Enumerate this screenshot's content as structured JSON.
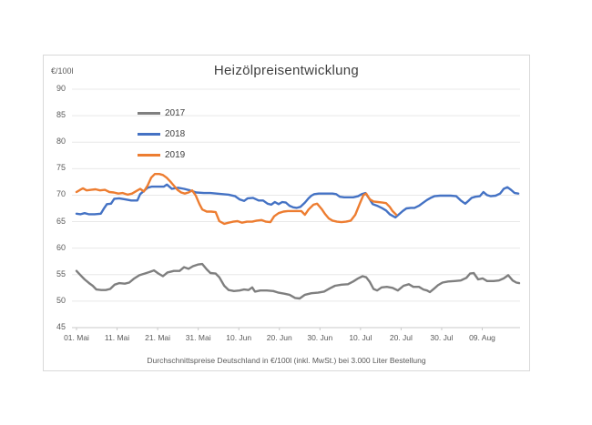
{
  "chart_data": {
    "type": "line",
    "title": "Heizölpreisentwicklung",
    "y_axis_title": "€/100l",
    "footnote": "Durchschnittspreise Deutschland in €/100l (inkl. MwSt.) bei 3.000 Liter Bestellung",
    "x_tick_labels": [
      "01. Mai",
      "11. Mai",
      "21. Mai",
      "31. Mai",
      "10. Jun",
      "20. Jun",
      "30. Jun",
      "10. Jul",
      "20. Jul",
      "30. Jul",
      "09. Aug"
    ],
    "x_tick_step_days": 10,
    "y_tick_values": [
      90,
      85,
      80,
      75,
      70,
      65,
      60,
      55,
      50,
      45
    ],
    "ylim": [
      45,
      90
    ],
    "grid": "horizontal",
    "legend_position": "inside-top-left",
    "colors": {
      "grid": "#e8e8e8",
      "axis": "#c9c9c9",
      "tick_text": "#595959",
      "title_text": "#404040"
    },
    "series": [
      {
        "name": "2017",
        "color": "#7f7f7f",
        "points": [
          [
            0,
            55.7
          ],
          [
            1.1,
            54.8
          ],
          [
            2,
            54.1
          ],
          [
            3.1,
            53.4
          ],
          [
            4,
            52.9
          ],
          [
            4.9,
            52.2
          ],
          [
            6.1,
            52.1
          ],
          [
            7.2,
            52.1
          ],
          [
            8.3,
            52.3
          ],
          [
            9.4,
            53.1
          ],
          [
            10.5,
            53.4
          ],
          [
            11.9,
            53.3
          ],
          [
            13,
            53.5
          ],
          [
            14.1,
            54.2
          ],
          [
            15.5,
            54.9
          ],
          [
            16.8,
            55.2
          ],
          [
            18,
            55.5
          ],
          [
            19.1,
            55.8
          ],
          [
            20.2,
            55.2
          ],
          [
            21.3,
            54.7
          ],
          [
            22.4,
            55.4
          ],
          [
            24,
            55.7
          ],
          [
            25.4,
            55.7
          ],
          [
            26.5,
            56.4
          ],
          [
            27.6,
            56.1
          ],
          [
            28.7,
            56.6
          ],
          [
            29.9,
            56.9
          ],
          [
            31,
            57.0
          ],
          [
            32.1,
            56.0
          ],
          [
            33,
            55.3
          ],
          [
            34.3,
            55.2
          ],
          [
            35.2,
            54.5
          ],
          [
            36.4,
            52.9
          ],
          [
            37.5,
            52.1
          ],
          [
            38.8,
            51.9
          ],
          [
            40.2,
            52.0
          ],
          [
            41.3,
            52.2
          ],
          [
            42.4,
            52.1
          ],
          [
            43.3,
            52.6
          ],
          [
            44,
            51.8
          ],
          [
            45.3,
            52.0
          ],
          [
            46.9,
            52.0
          ],
          [
            48.5,
            51.9
          ],
          [
            49.8,
            51.6
          ],
          [
            51.2,
            51.4
          ],
          [
            52.5,
            51.2
          ],
          [
            53.9,
            50.6
          ],
          [
            55,
            50.5
          ],
          [
            56.3,
            51.2
          ],
          [
            57.9,
            51.5
          ],
          [
            59.5,
            51.6
          ],
          [
            61,
            51.8
          ],
          [
            62.4,
            52.4
          ],
          [
            63.7,
            52.9
          ],
          [
            65.3,
            53.1
          ],
          [
            66.9,
            53.2
          ],
          [
            68.2,
            53.7
          ],
          [
            69.4,
            54.3
          ],
          [
            70.5,
            54.7
          ],
          [
            71.4,
            54.5
          ],
          [
            72.3,
            53.6
          ],
          [
            73.2,
            52.3
          ],
          [
            74.1,
            52.0
          ],
          [
            75.2,
            52.6
          ],
          [
            76.5,
            52.7
          ],
          [
            77.9,
            52.5
          ],
          [
            79.2,
            52.0
          ],
          [
            80.6,
            52.9
          ],
          [
            81.9,
            53.2
          ],
          [
            83,
            52.7
          ],
          [
            84.4,
            52.7
          ],
          [
            85.5,
            52.2
          ],
          [
            86.4,
            52.0
          ],
          [
            87.1,
            51.7
          ],
          [
            88.2,
            52.4
          ],
          [
            89.1,
            53.0
          ],
          [
            90.2,
            53.5
          ],
          [
            91.6,
            53.7
          ],
          [
            93.2,
            53.8
          ],
          [
            94.7,
            53.9
          ],
          [
            96.1,
            54.4
          ],
          [
            97,
            55.2
          ],
          [
            97.9,
            55.3
          ],
          [
            99,
            54.1
          ],
          [
            100.1,
            54.3
          ],
          [
            101.2,
            53.8
          ],
          [
            102.8,
            53.8
          ],
          [
            104.1,
            53.9
          ],
          [
            105.3,
            54.3
          ],
          [
            106.4,
            54.9
          ],
          [
            107.5,
            53.9
          ],
          [
            108.4,
            53.5
          ],
          [
            109.1,
            53.4
          ]
        ]
      },
      {
        "name": "2018",
        "color": "#4472c4",
        "points": [
          [
            0,
            66.5
          ],
          [
            1,
            66.4
          ],
          [
            2,
            66.6
          ],
          [
            3,
            66.4
          ],
          [
            4.5,
            66.4
          ],
          [
            6,
            66.5
          ],
          [
            6.7,
            67.4
          ],
          [
            7.5,
            68.3
          ],
          [
            8.5,
            68.4
          ],
          [
            9.3,
            69.3
          ],
          [
            10.5,
            69.4
          ],
          [
            12,
            69.2
          ],
          [
            13.5,
            69.0
          ],
          [
            15,
            69.0
          ],
          [
            15.7,
            70.2
          ],
          [
            17.5,
            71.4
          ],
          [
            18.5,
            71.6
          ],
          [
            20,
            71.6
          ],
          [
            21.5,
            71.6
          ],
          [
            22.3,
            72.0
          ],
          [
            23.5,
            71.2
          ],
          [
            25,
            71.4
          ],
          [
            26.5,
            71.2
          ],
          [
            28,
            70.9
          ],
          [
            29.5,
            70.5
          ],
          [
            31.4,
            70.4
          ],
          [
            33,
            70.4
          ],
          [
            34.5,
            70.3
          ],
          [
            36,
            70.2
          ],
          [
            37.5,
            70.1
          ],
          [
            39.1,
            69.8
          ],
          [
            40.2,
            69.2
          ],
          [
            41.3,
            68.9
          ],
          [
            42.2,
            69.4
          ],
          [
            43.5,
            69.5
          ],
          [
            44.9,
            69.0
          ],
          [
            46,
            69.0
          ],
          [
            47.1,
            68.4
          ],
          [
            48,
            68.2
          ],
          [
            48.9,
            68.7
          ],
          [
            49.8,
            68.3
          ],
          [
            50.7,
            68.7
          ],
          [
            51.6,
            68.6
          ],
          [
            52.5,
            68.0
          ],
          [
            53.4,
            67.7
          ],
          [
            54.3,
            67.6
          ],
          [
            55.2,
            67.8
          ],
          [
            56.3,
            68.6
          ],
          [
            57.2,
            69.4
          ],
          [
            57.9,
            69.9
          ],
          [
            58.6,
            70.2
          ],
          [
            59.7,
            70.3
          ],
          [
            60.8,
            70.3
          ],
          [
            61.9,
            70.3
          ],
          [
            63.1,
            70.3
          ],
          [
            64,
            70.2
          ],
          [
            64.9,
            69.7
          ],
          [
            66,
            69.6
          ],
          [
            67.1,
            69.6
          ],
          [
            68.2,
            69.6
          ],
          [
            69.4,
            69.8
          ],
          [
            70.3,
            70.2
          ],
          [
            71.2,
            70.4
          ],
          [
            72.1,
            69.4
          ],
          [
            73,
            68.3
          ],
          [
            74.1,
            68.0
          ],
          [
            75.2,
            67.6
          ],
          [
            76.3,
            67.1
          ],
          [
            77.2,
            66.4
          ],
          [
            77.9,
            66.1
          ],
          [
            78.6,
            65.8
          ],
          [
            79.5,
            66.4
          ],
          [
            80.4,
            67.0
          ],
          [
            81.3,
            67.5
          ],
          [
            82.4,
            67.6
          ],
          [
            83.3,
            67.6
          ],
          [
            84.4,
            68.0
          ],
          [
            85.3,
            68.5
          ],
          [
            86.4,
            69.1
          ],
          [
            87.3,
            69.5
          ],
          [
            88.2,
            69.8
          ],
          [
            89.6,
            69.9
          ],
          [
            90.9,
            69.9
          ],
          [
            92.2,
            69.9
          ],
          [
            93.6,
            69.8
          ],
          [
            94.7,
            69.0
          ],
          [
            95.8,
            68.4
          ],
          [
            96.7,
            69.0
          ],
          [
            97.4,
            69.5
          ],
          [
            98.3,
            69.7
          ],
          [
            99.4,
            69.8
          ],
          [
            100.3,
            70.6
          ],
          [
            101.2,
            70.0
          ],
          [
            102.1,
            69.8
          ],
          [
            103.3,
            69.9
          ],
          [
            104.4,
            70.3
          ],
          [
            105.3,
            71.2
          ],
          [
            106.2,
            71.5
          ],
          [
            107.1,
            71.0
          ],
          [
            108,
            70.4
          ],
          [
            108.9,
            70.3
          ]
        ]
      },
      {
        "name": "2019",
        "color": "#ed7d31",
        "points": [
          [
            0,
            70.6
          ],
          [
            0.9,
            71.0
          ],
          [
            1.6,
            71.3
          ],
          [
            2.5,
            70.9
          ],
          [
            3.6,
            71.0
          ],
          [
            4.7,
            71.1
          ],
          [
            5.8,
            70.9
          ],
          [
            7,
            71.0
          ],
          [
            8.1,
            70.6
          ],
          [
            9.2,
            70.5
          ],
          [
            10.3,
            70.3
          ],
          [
            11.4,
            70.4
          ],
          [
            12.6,
            70.1
          ],
          [
            13.7,
            70.3
          ],
          [
            14.8,
            70.8
          ],
          [
            15.7,
            71.2
          ],
          [
            16.6,
            70.7
          ],
          [
            17.5,
            71.8
          ],
          [
            18.4,
            73.3
          ],
          [
            19.3,
            74.0
          ],
          [
            20.4,
            74.0
          ],
          [
            21.3,
            73.8
          ],
          [
            22.2,
            73.3
          ],
          [
            23.1,
            72.6
          ],
          [
            24,
            71.8
          ],
          [
            24.9,
            71.0
          ],
          [
            25.8,
            70.5
          ],
          [
            26.7,
            70.3
          ],
          [
            27.6,
            70.5
          ],
          [
            28.5,
            70.9
          ],
          [
            29.4,
            69.9
          ],
          [
            30.3,
            68.3
          ],
          [
            31,
            67.3
          ],
          [
            32.1,
            66.9
          ],
          [
            33.2,
            66.9
          ],
          [
            34.3,
            66.8
          ],
          [
            35.2,
            65.1
          ],
          [
            36.4,
            64.6
          ],
          [
            37.5,
            64.8
          ],
          [
            38.6,
            65.0
          ],
          [
            39.7,
            65.1
          ],
          [
            40.8,
            64.8
          ],
          [
            42,
            65.0
          ],
          [
            43.3,
            65.0
          ],
          [
            44.4,
            65.2
          ],
          [
            45.6,
            65.3
          ],
          [
            46.7,
            65.0
          ],
          [
            47.8,
            64.9
          ],
          [
            48.7,
            66.0
          ],
          [
            49.8,
            66.6
          ],
          [
            51,
            66.9
          ],
          [
            52.1,
            67.0
          ],
          [
            53.2,
            67.0
          ],
          [
            54.3,
            67.0
          ],
          [
            55.4,
            67.0
          ],
          [
            56.3,
            66.3
          ],
          [
            57.2,
            67.3
          ],
          [
            58.4,
            68.2
          ],
          [
            59.3,
            68.4
          ],
          [
            60.4,
            67.4
          ],
          [
            61.3,
            66.4
          ],
          [
            62.2,
            65.6
          ],
          [
            63.1,
            65.2
          ],
          [
            64.2,
            65.0
          ],
          [
            65.3,
            64.9
          ],
          [
            66.4,
            65.0
          ],
          [
            67.6,
            65.2
          ],
          [
            68.7,
            66.3
          ],
          [
            69.8,
            68.4
          ],
          [
            70.7,
            70.0
          ],
          [
            71.4,
            70.3
          ],
          [
            72.3,
            69.2
          ],
          [
            73.2,
            68.8
          ],
          [
            74.3,
            68.7
          ],
          [
            75.4,
            68.6
          ],
          [
            76.3,
            68.5
          ],
          [
            77.2,
            67.8
          ],
          [
            77.9,
            67.0
          ],
          [
            78.8,
            66.3
          ]
        ]
      }
    ]
  }
}
